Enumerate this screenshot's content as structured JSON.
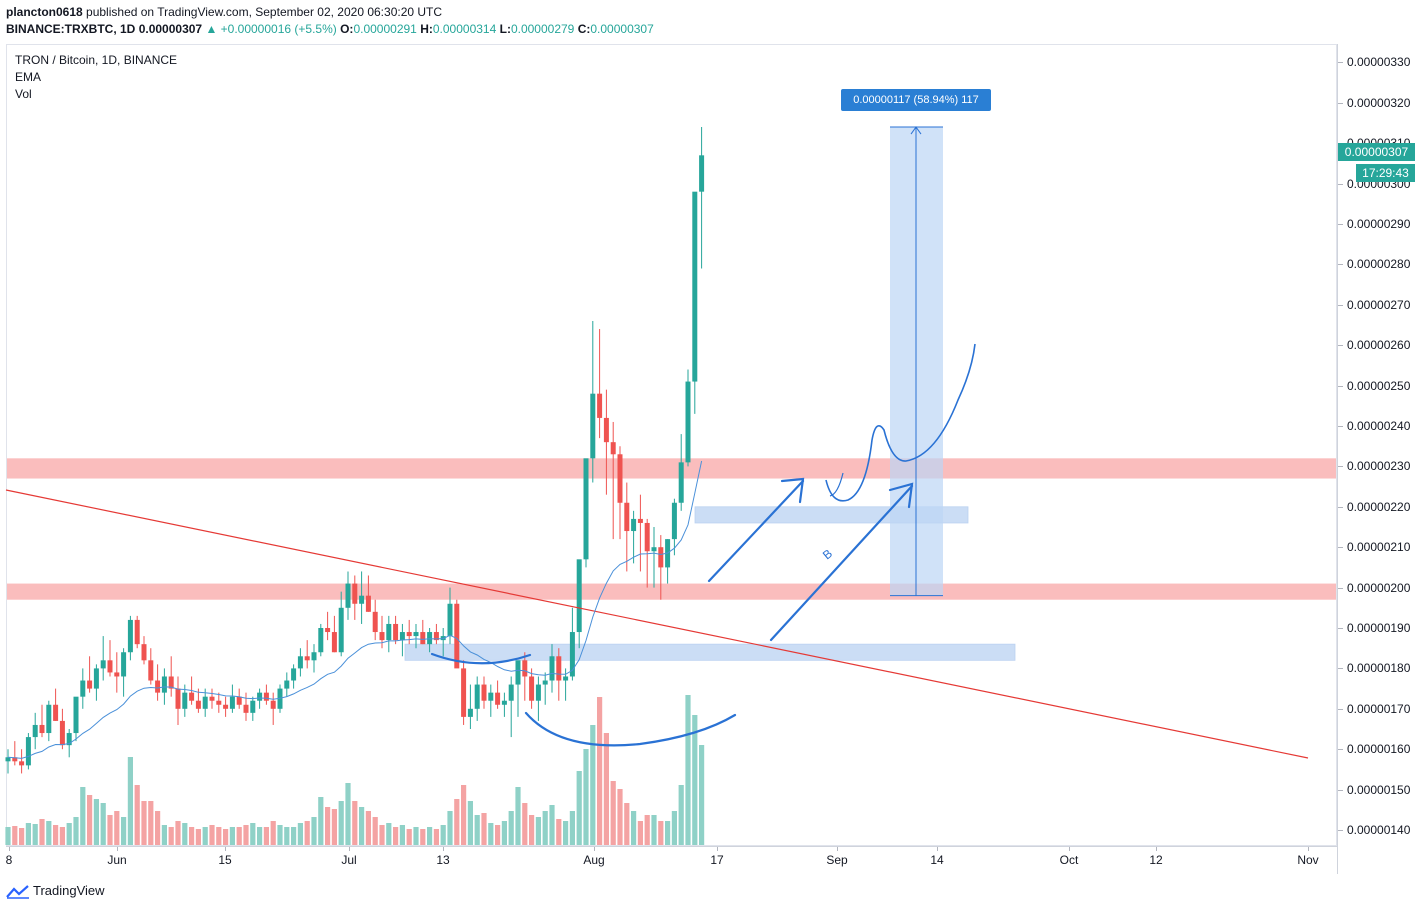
{
  "header": {
    "line1_user": "plancton0618",
    "line1_rest": " published on TradingView.com, September 02, 2020 06:30:20 UTC",
    "symbol": "BINANCE:TRXBTC, 1D",
    "last": "0.00000307",
    "change": "▲ +0.00000016 (+5.5%)",
    "o_label": "O:",
    "o_value": "0.00000291",
    "h_label": "H:",
    "h_value": "0.00000314",
    "l_label": "L:",
    "l_value": "0.00000279",
    "c_label": "C:",
    "c_value": "0.00000307"
  },
  "legend": {
    "title": "TRON / Bitcoin, 1D, BINANCE",
    "ema": "EMA",
    "vol": "Vol"
  },
  "price_tag": "0.00000307",
  "countdown": "17:29:43",
  "measure_label": "0.00000117 (58.94%) 117",
  "annotation_letter": "B",
  "footer": {
    "brand": "TradingView"
  },
  "colors": {
    "up": "#26a69a",
    "down": "#ef5350",
    "vol_up": "#8fd1c7",
    "vol_down": "#f4a3a3",
    "ema": "#4a90d9",
    "trendline": "#e53935",
    "resistance_zone": "#f9b1b1",
    "support_zone": "#a9c8f0",
    "drawing": "#2a72d4"
  },
  "chart_data": {
    "type": "candlestick",
    "symbol": "TRON / Bitcoin",
    "interval": "1D",
    "exchange": "BINANCE",
    "indicators": [
      "EMA",
      "Vol"
    ],
    "ylim": [
      1.36e-06,
      3.34e-06
    ],
    "y_ticks": [
      "0.00000330",
      "0.00000320",
      "0.00000310",
      "0.00000300",
      "0.00000290",
      "0.00000280",
      "0.00000270",
      "0.00000260",
      "0.00000250",
      "0.00000240",
      "0.00000230",
      "0.00000220",
      "0.00000210",
      "0.00000200",
      "0.00000190",
      "0.00000180",
      "0.00000170",
      "0.00000160",
      "0.00000150",
      "0.00000140"
    ],
    "x_ticks": [
      "8",
      "Jun",
      "15",
      "Jul",
      "13",
      "Aug",
      "17",
      "Sep",
      "14",
      "Oct",
      "12",
      "Nov"
    ],
    "candles_ohlc_x1e8": [
      [
        157,
        160,
        154,
        158
      ],
      [
        158,
        162,
        156,
        157
      ],
      [
        157,
        160,
        154,
        156
      ],
      [
        156,
        164,
        155,
        163
      ],
      [
        163,
        169,
        160,
        166
      ],
      [
        166,
        171,
        163,
        164
      ],
      [
        164,
        172,
        162,
        171
      ],
      [
        171,
        175,
        167,
        167
      ],
      [
        167,
        170,
        160,
        161
      ],
      [
        161,
        165,
        158,
        164
      ],
      [
        164,
        171,
        162,
        173
      ],
      [
        173,
        180,
        170,
        177
      ],
      [
        177,
        183,
        174,
        175
      ],
      [
        175,
        181,
        172,
        180
      ],
      [
        180,
        188,
        177,
        182
      ],
      [
        182,
        187,
        178,
        179
      ],
      [
        179,
        184,
        174,
        178
      ],
      [
        178,
        185,
        173,
        184
      ],
      [
        184,
        193,
        182,
        192
      ],
      [
        192,
        193,
        185,
        186
      ],
      [
        186,
        188,
        181,
        182
      ],
      [
        182,
        185,
        176,
        177
      ],
      [
        177,
        181,
        172,
        174
      ],
      [
        174,
        180,
        171,
        178
      ],
      [
        178,
        183,
        173,
        175
      ],
      [
        175,
        178,
        166,
        170
      ],
      [
        170,
        176,
        168,
        174
      ],
      [
        174,
        178,
        171,
        172
      ],
      [
        172,
        175,
        169,
        170
      ],
      [
        170,
        175,
        168,
        173
      ],
      [
        173,
        175,
        170,
        172
      ],
      [
        172,
        174,
        169,
        171
      ],
      [
        171,
        173,
        168,
        170
      ],
      [
        170,
        176,
        169,
        173
      ],
      [
        173,
        175,
        170,
        171
      ],
      [
        171,
        174,
        167,
        169
      ],
      [
        169,
        173,
        167,
        172
      ],
      [
        172,
        175,
        170,
        174
      ],
      [
        174,
        176,
        171,
        172
      ],
      [
        172,
        174,
        166,
        170
      ],
      [
        170,
        176,
        169,
        175
      ],
      [
        175,
        179,
        173,
        177
      ],
      [
        177,
        181,
        175,
        180
      ],
      [
        180,
        185,
        178,
        183
      ],
      [
        183,
        187,
        180,
        182
      ],
      [
        182,
        186,
        179,
        184
      ],
      [
        184,
        191,
        183,
        190
      ],
      [
        190,
        194,
        187,
        189
      ],
      [
        189,
        193,
        184,
        184
      ],
      [
        184,
        199,
        183,
        195
      ],
      [
        195,
        204,
        192,
        201
      ],
      [
        201,
        203,
        192,
        196
      ],
      [
        196,
        204,
        191,
        198
      ],
      [
        198,
        203,
        194,
        194
      ],
      [
        194,
        197,
        187,
        189
      ],
      [
        189,
        193,
        185,
        187
      ],
      [
        187,
        193,
        184,
        191
      ],
      [
        191,
        193,
        186,
        187
      ],
      [
        187,
        191,
        183,
        189
      ],
      [
        189,
        192,
        186,
        188
      ],
      [
        188,
        191,
        185,
        189
      ],
      [
        189,
        192,
        186,
        186
      ],
      [
        186,
        190,
        184,
        189
      ],
      [
        189,
        191,
        186,
        187
      ],
      [
        187,
        190,
        183,
        188
      ],
      [
        188,
        200,
        186,
        196
      ],
      [
        196,
        197,
        182,
        180
      ],
      [
        180,
        182,
        166,
        168
      ],
      [
        168,
        176,
        165,
        170
      ],
      [
        170,
        178,
        167,
        176
      ],
      [
        176,
        178,
        170,
        172
      ],
      [
        172,
        176,
        168,
        174
      ],
      [
        174,
        177,
        170,
        171
      ],
      [
        171,
        174,
        168,
        172
      ],
      [
        172,
        178,
        163,
        176
      ],
      [
        176,
        180,
        168,
        182
      ],
      [
        182,
        184,
        172,
        178
      ],
      [
        178,
        180,
        170,
        172
      ],
      [
        172,
        178,
        167,
        176
      ],
      [
        176,
        179,
        171,
        177
      ],
      [
        177,
        186,
        174,
        183
      ],
      [
        183,
        185,
        172,
        177
      ],
      [
        177,
        180,
        172,
        178
      ],
      [
        178,
        195,
        177,
        189
      ],
      [
        189,
        206,
        185,
        207
      ],
      [
        207,
        223,
        205,
        232
      ],
      [
        232,
        266,
        226,
        248
      ],
      [
        248,
        264,
        237,
        242
      ],
      [
        242,
        249,
        223,
        236
      ],
      [
        236,
        241,
        212,
        233
      ],
      [
        233,
        235,
        212,
        221
      ],
      [
        221,
        226,
        204,
        214
      ],
      [
        214,
        219,
        206,
        217
      ],
      [
        217,
        223,
        204,
        216
      ],
      [
        216,
        217,
        200,
        209
      ],
      [
        209,
        215,
        200,
        210
      ],
      [
        210,
        213,
        197,
        205
      ],
      [
        205,
        212,
        201,
        212
      ],
      [
        212,
        222,
        208,
        221
      ],
      [
        221,
        238,
        219,
        231
      ],
      [
        231,
        254,
        230,
        251
      ],
      [
        251,
        283,
        243,
        298
      ],
      [
        298,
        314,
        279,
        307
      ]
    ]
  }
}
